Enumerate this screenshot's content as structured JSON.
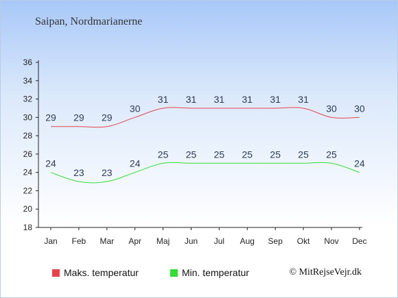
{
  "title": "Saipan, Nordmarianerne",
  "copyright": "© MitRejseVejr.dk",
  "chart_data": {
    "type": "line",
    "categories": [
      "Jan",
      "Feb",
      "Mar",
      "Apr",
      "Maj",
      "Jun",
      "Jul",
      "Aug",
      "Sep",
      "Okt",
      "Nov",
      "Dec"
    ],
    "series": [
      {
        "name": "Maks. temperatur",
        "color": "#e8434b",
        "values": [
          29,
          29,
          29,
          30,
          31,
          31,
          31,
          31,
          31,
          31,
          30,
          30
        ]
      },
      {
        "name": "Min. temperatur",
        "color": "#33dd33",
        "values": [
          24,
          23,
          23,
          24,
          25,
          25,
          25,
          25,
          25,
          25,
          25,
          24
        ]
      }
    ],
    "yticks": [
      18,
      20,
      22,
      24,
      26,
      28,
      30,
      32,
      34,
      36
    ],
    "ylim": [
      18,
      36
    ],
    "grid": false,
    "legend": "bottom"
  }
}
